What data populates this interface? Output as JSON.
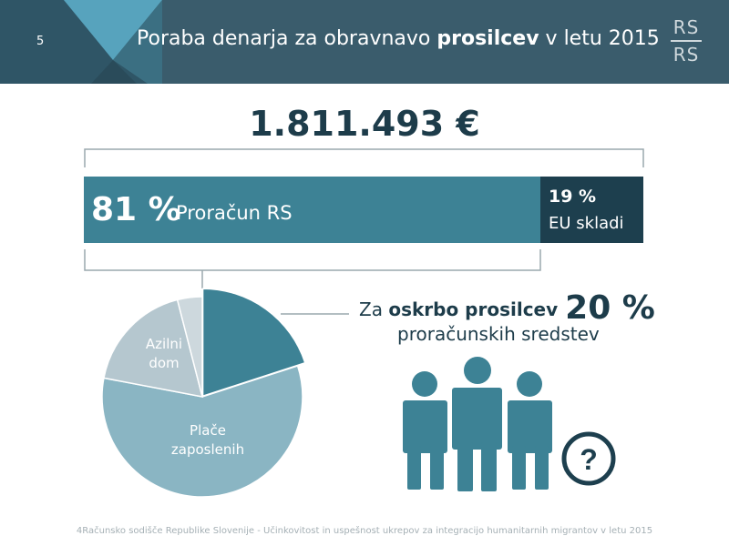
{
  "header": {
    "slide_number": "5",
    "title_prefix": "Poraba denarja za obravnavo ",
    "title_bold": "prosilcev",
    "title_suffix": " v letu 2015",
    "logo_top": "RS",
    "logo_bottom": "RS"
  },
  "total": "1.811.493 €",
  "budget_split": {
    "main": {
      "pct": "81 %",
      "label": "Proračun RS"
    },
    "eu": {
      "pct": "19 %",
      "label": "EU skladi"
    }
  },
  "callout": {
    "prefix": "Za ",
    "bold": "oskrbo prosilcev",
    "value": "20 %",
    "line2": "proračunskih sredstev"
  },
  "footer": "4Računsko sodišče Republike Slovenije - Učinkovitost in uspešnost ukrepov za integracijo humanitarnih migrantov v letu 2015",
  "colors": {
    "header": "#3a5c6c",
    "bar_main": "#3d8295",
    "bar_eu": "#1d3f4e",
    "title_text": "#1d3c4a",
    "people": "#3d8295",
    "question": "#1d3f4e"
  },
  "icons": [
    "person-icon",
    "question-mark-icon"
  ],
  "chart_data": [
    {
      "type": "bar",
      "orientation": "horizontal-stacked",
      "total": "1.811.493 €",
      "categories": [
        "Proračun RS",
        "EU skladi"
      ],
      "values": [
        81,
        19
      ],
      "unit": "%"
    },
    {
      "type": "pie",
      "slices": [
        {
          "label": "",
          "value": 20,
          "color": "#3d8295",
          "emphasis": true
        },
        {
          "label": "Plače zaposlenih",
          "value": 58,
          "color": "#8ab5c3"
        },
        {
          "label": "Azilni dom",
          "value": 18,
          "color": "#b5c7cf"
        },
        {
          "label": "",
          "value": 4,
          "color": "#cdd8dd"
        }
      ]
    }
  ]
}
